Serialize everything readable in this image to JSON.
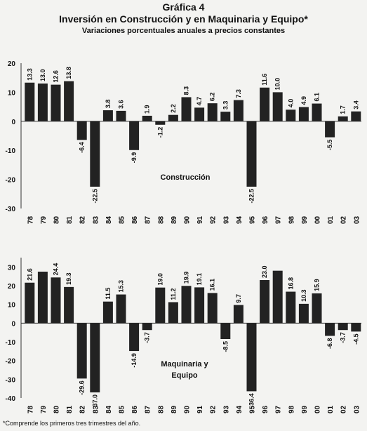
{
  "header": {
    "figure_number": "Gráfica 4",
    "title": "Inversión en Construcción y en Maquinaria y Equipo*",
    "subtitle": "Variaciones porcentuales anuales a precios constantes"
  },
  "footnote": "*Comprende los primeros tres trimestres del año.",
  "colors": {
    "bar": "#222222",
    "axis": "#333333",
    "background": "#f3f3f1"
  },
  "chart_data": [
    {
      "type": "bar",
      "title": "Construcción",
      "categories": [
        "78",
        "79",
        "80",
        "81",
        "82",
        "83",
        "84",
        "85",
        "86",
        "87",
        "88",
        "89",
        "90",
        "91",
        "92",
        "93",
        "94",
        "95",
        "96",
        "97",
        "98",
        "99",
        "00",
        "01",
        "02",
        "03"
      ],
      "values": [
        13.3,
        13.0,
        12.6,
        13.8,
        -6.4,
        -22.5,
        3.8,
        3.6,
        -9.9,
        1.9,
        -1.2,
        2.2,
        8.3,
        4.7,
        6.2,
        3.3,
        7.3,
        -22.5,
        11.6,
        10.0,
        4.0,
        4.9,
        6.1,
        -5.5,
        1.7,
        3.4
      ],
      "labels": [
        "13.3",
        "13.0",
        "12.6",
        "13.8",
        "-6.4",
        "-22.5",
        "3.8",
        "3.6",
        "-9.9",
        "1.9",
        "-1.2",
        "2.2",
        "8.3",
        "4.7",
        "6.2",
        "3.3",
        "7.3",
        "-22.5",
        "11.6",
        "10.0",
        "4.0",
        "4.9",
        "6.1",
        "-5.5",
        "1.7",
        "3.4"
      ],
      "yticks": [
        "20",
        "10",
        "0",
        "-10",
        "-20",
        "-30"
      ],
      "ylim": [
        -30,
        20
      ],
      "grid": false,
      "legend": "none"
    },
    {
      "type": "bar",
      "title": "Maquinaria y Equipo",
      "categories": [
        "78",
        "79",
        "80",
        "81",
        "82",
        "83",
        "84",
        "85",
        "86",
        "87",
        "88",
        "89",
        "90",
        "91",
        "92",
        "93",
        "94",
        "95",
        "96",
        "97",
        "98",
        "99",
        "00",
        "01",
        "02",
        "03"
      ],
      "values": [
        21.6,
        27.5,
        24.4,
        19.3,
        -29.6,
        -37.0,
        11.5,
        15.3,
        -14.9,
        -3.7,
        19.0,
        11.2,
        19.9,
        19.1,
        16.1,
        -8.5,
        9.7,
        -36.4,
        23.0,
        28.0,
        16.8,
        10.3,
        15.9,
        -6.8,
        -3.7,
        -4.5
      ],
      "labels": [
        "21.6",
        "",
        "24.4",
        "19.3",
        "-29.6",
        "-37.0",
        "11.5",
        "15.3",
        "-14.9",
        "-3.7",
        "19.0",
        "11.2",
        "19.9",
        "19.1",
        "16.1",
        "-8.5",
        "9.7",
        "-36.4",
        "23.0",
        "",
        "16.8",
        "10.3",
        "15.9",
        "-6.8",
        "-3.7",
        "-4.5"
      ],
      "yticks": [
        "30",
        "20",
        "10",
        "0",
        "-10",
        "-20",
        "-30",
        "-40"
      ],
      "ylim": [
        -40,
        35
      ],
      "grid": false,
      "legend": "none"
    }
  ]
}
